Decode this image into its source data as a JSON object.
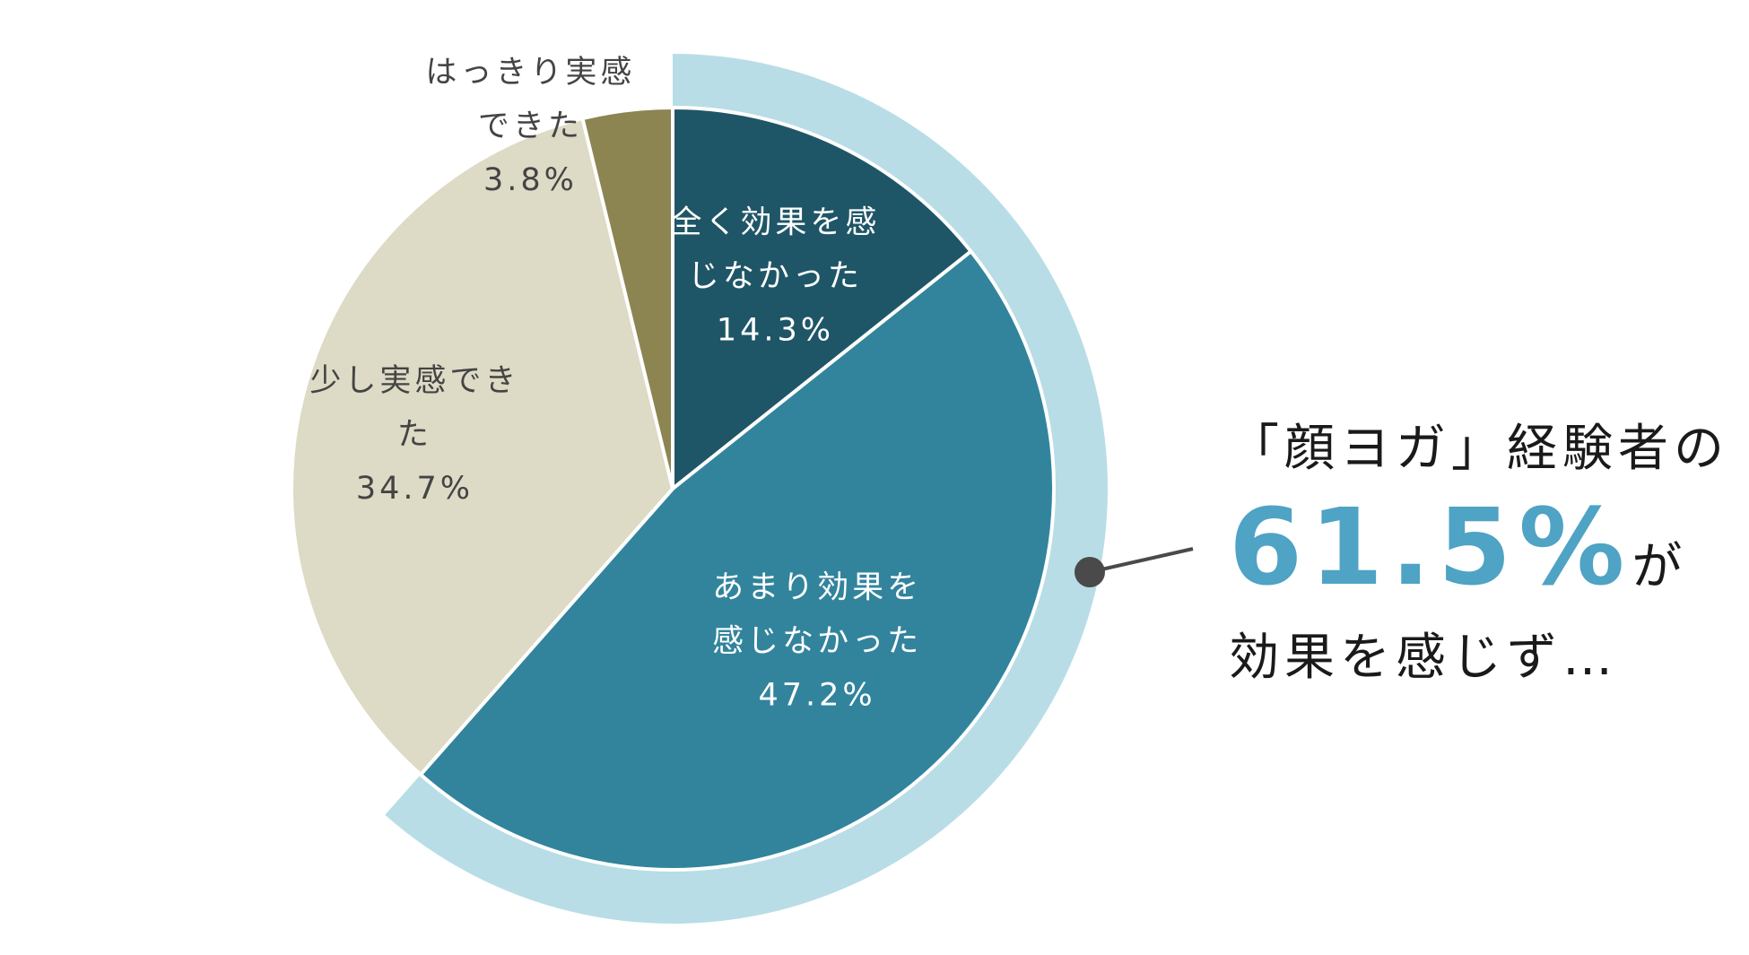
{
  "chart_data": {
    "type": "pie",
    "slices": [
      {
        "label_lines": [
          "全く効果を感",
          "じなかった"
        ],
        "value_text": "14.3%",
        "value": 14.3,
        "color": "#1f5667"
      },
      {
        "label_lines": [
          "あまり効果を",
          "感じなかった"
        ],
        "value_text": "47.2%",
        "value": 47.2,
        "color": "#32849c"
      },
      {
        "label_lines": [
          "少し実感でき",
          "た"
        ],
        "value_text": "34.7%",
        "value": 34.7,
        "color": "#dddac5"
      },
      {
        "label_lines": [
          "はっきり実感",
          "できた"
        ],
        "value_text": "3.8%",
        "value": 3.8,
        "color": "#8c8552"
      }
    ],
    "highlight_ring": {
      "covers": [
        "全く効果を感じなかった",
        "あまり効果を感じなかった"
      ],
      "color": "#b8dde6"
    },
    "callout_dot_color": "#4a4a4a"
  },
  "callout": {
    "line1": "「顔ヨガ」経験者の",
    "percent": "61.5%",
    "particle": "が",
    "line3": "効果を感じず…",
    "percent_color": "#4fa3c4",
    "highlight_color": "#f9d9c2"
  }
}
